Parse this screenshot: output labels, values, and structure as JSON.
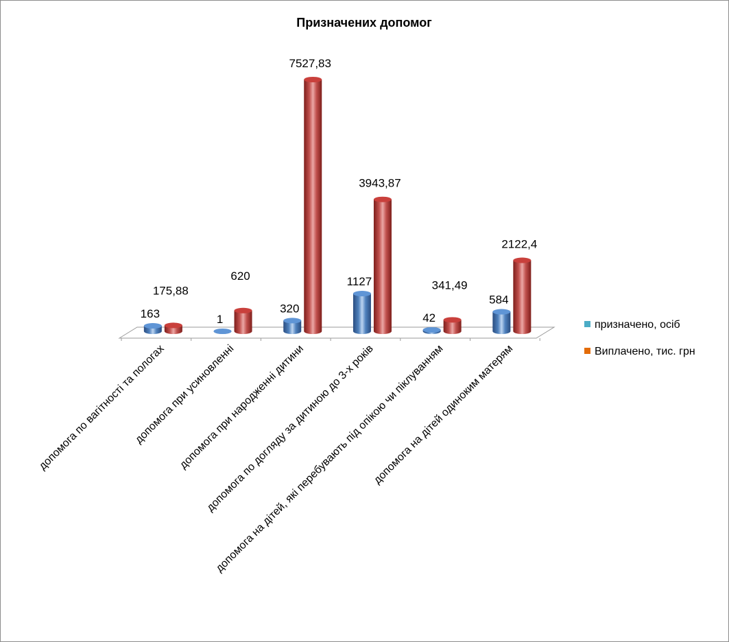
{
  "chart_data": {
    "type": "bar",
    "style": "3d-cylinder",
    "title": "Призначених допомог",
    "categories": [
      "допомога по вагітності та пологах",
      "допомога при усиновленні",
      "допомога при народженні дитини",
      "допомога по догляду за дитиною до 3-х років",
      "допомога на дітей, які перебувають під опікою чи піклуванням",
      "допомога на дітей одиноким матерям"
    ],
    "series": [
      {
        "name": "призначено, осіб",
        "color": "#4f81bd",
        "values": [
          163,
          1,
          320,
          1127,
          42,
          584
        ],
        "labels": [
          "163",
          "1",
          "320",
          "1127",
          "42",
          "584"
        ]
      },
      {
        "name": "Виплачено, тис. грн",
        "color": "#c0504d",
        "values": [
          175.88,
          620,
          7527.83,
          3943.87,
          341.49,
          2122.4
        ],
        "labels": [
          "175,88",
          "620",
          "7527,83",
          "3943,87",
          "341,49",
          "2122,4"
        ]
      }
    ],
    "ylim": [
      0,
      7527.83
    ],
    "grid": false,
    "legend": "right"
  }
}
